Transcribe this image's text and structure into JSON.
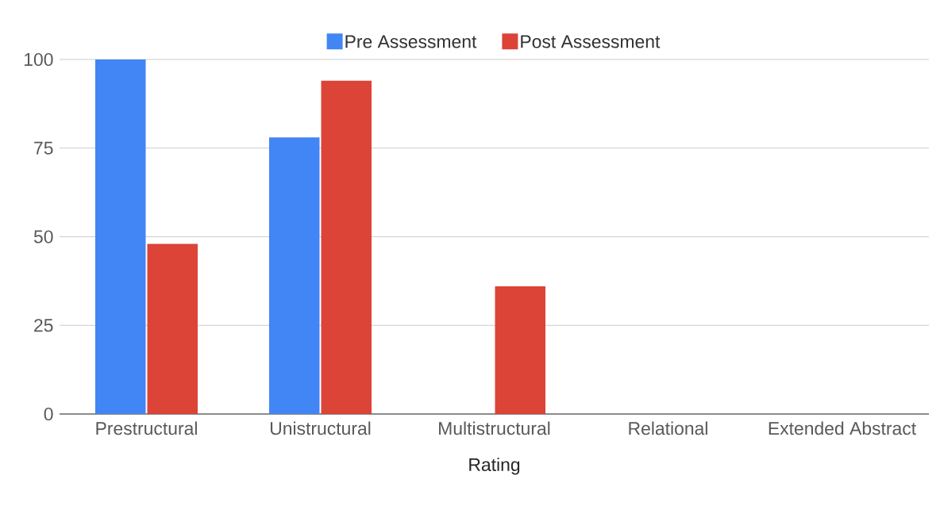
{
  "chart_data": {
    "type": "bar",
    "xlabel": "Rating",
    "categories": [
      "Prestructural",
      "Unistructural",
      "Multistructural",
      "Relational",
      "Extended Abstract"
    ],
    "series": [
      {
        "name": "Pre Assessment",
        "color": "#4285f4",
        "values": [
          100,
          78,
          0,
          0,
          0
        ]
      },
      {
        "name": "Post Assessment",
        "color": "#db4437",
        "values": [
          48,
          94,
          36,
          0,
          0
        ]
      }
    ],
    "ylim": [
      0,
      100
    ],
    "yticks": [
      0,
      25,
      50,
      75,
      100
    ],
    "grid": "y",
    "legend": "top"
  }
}
